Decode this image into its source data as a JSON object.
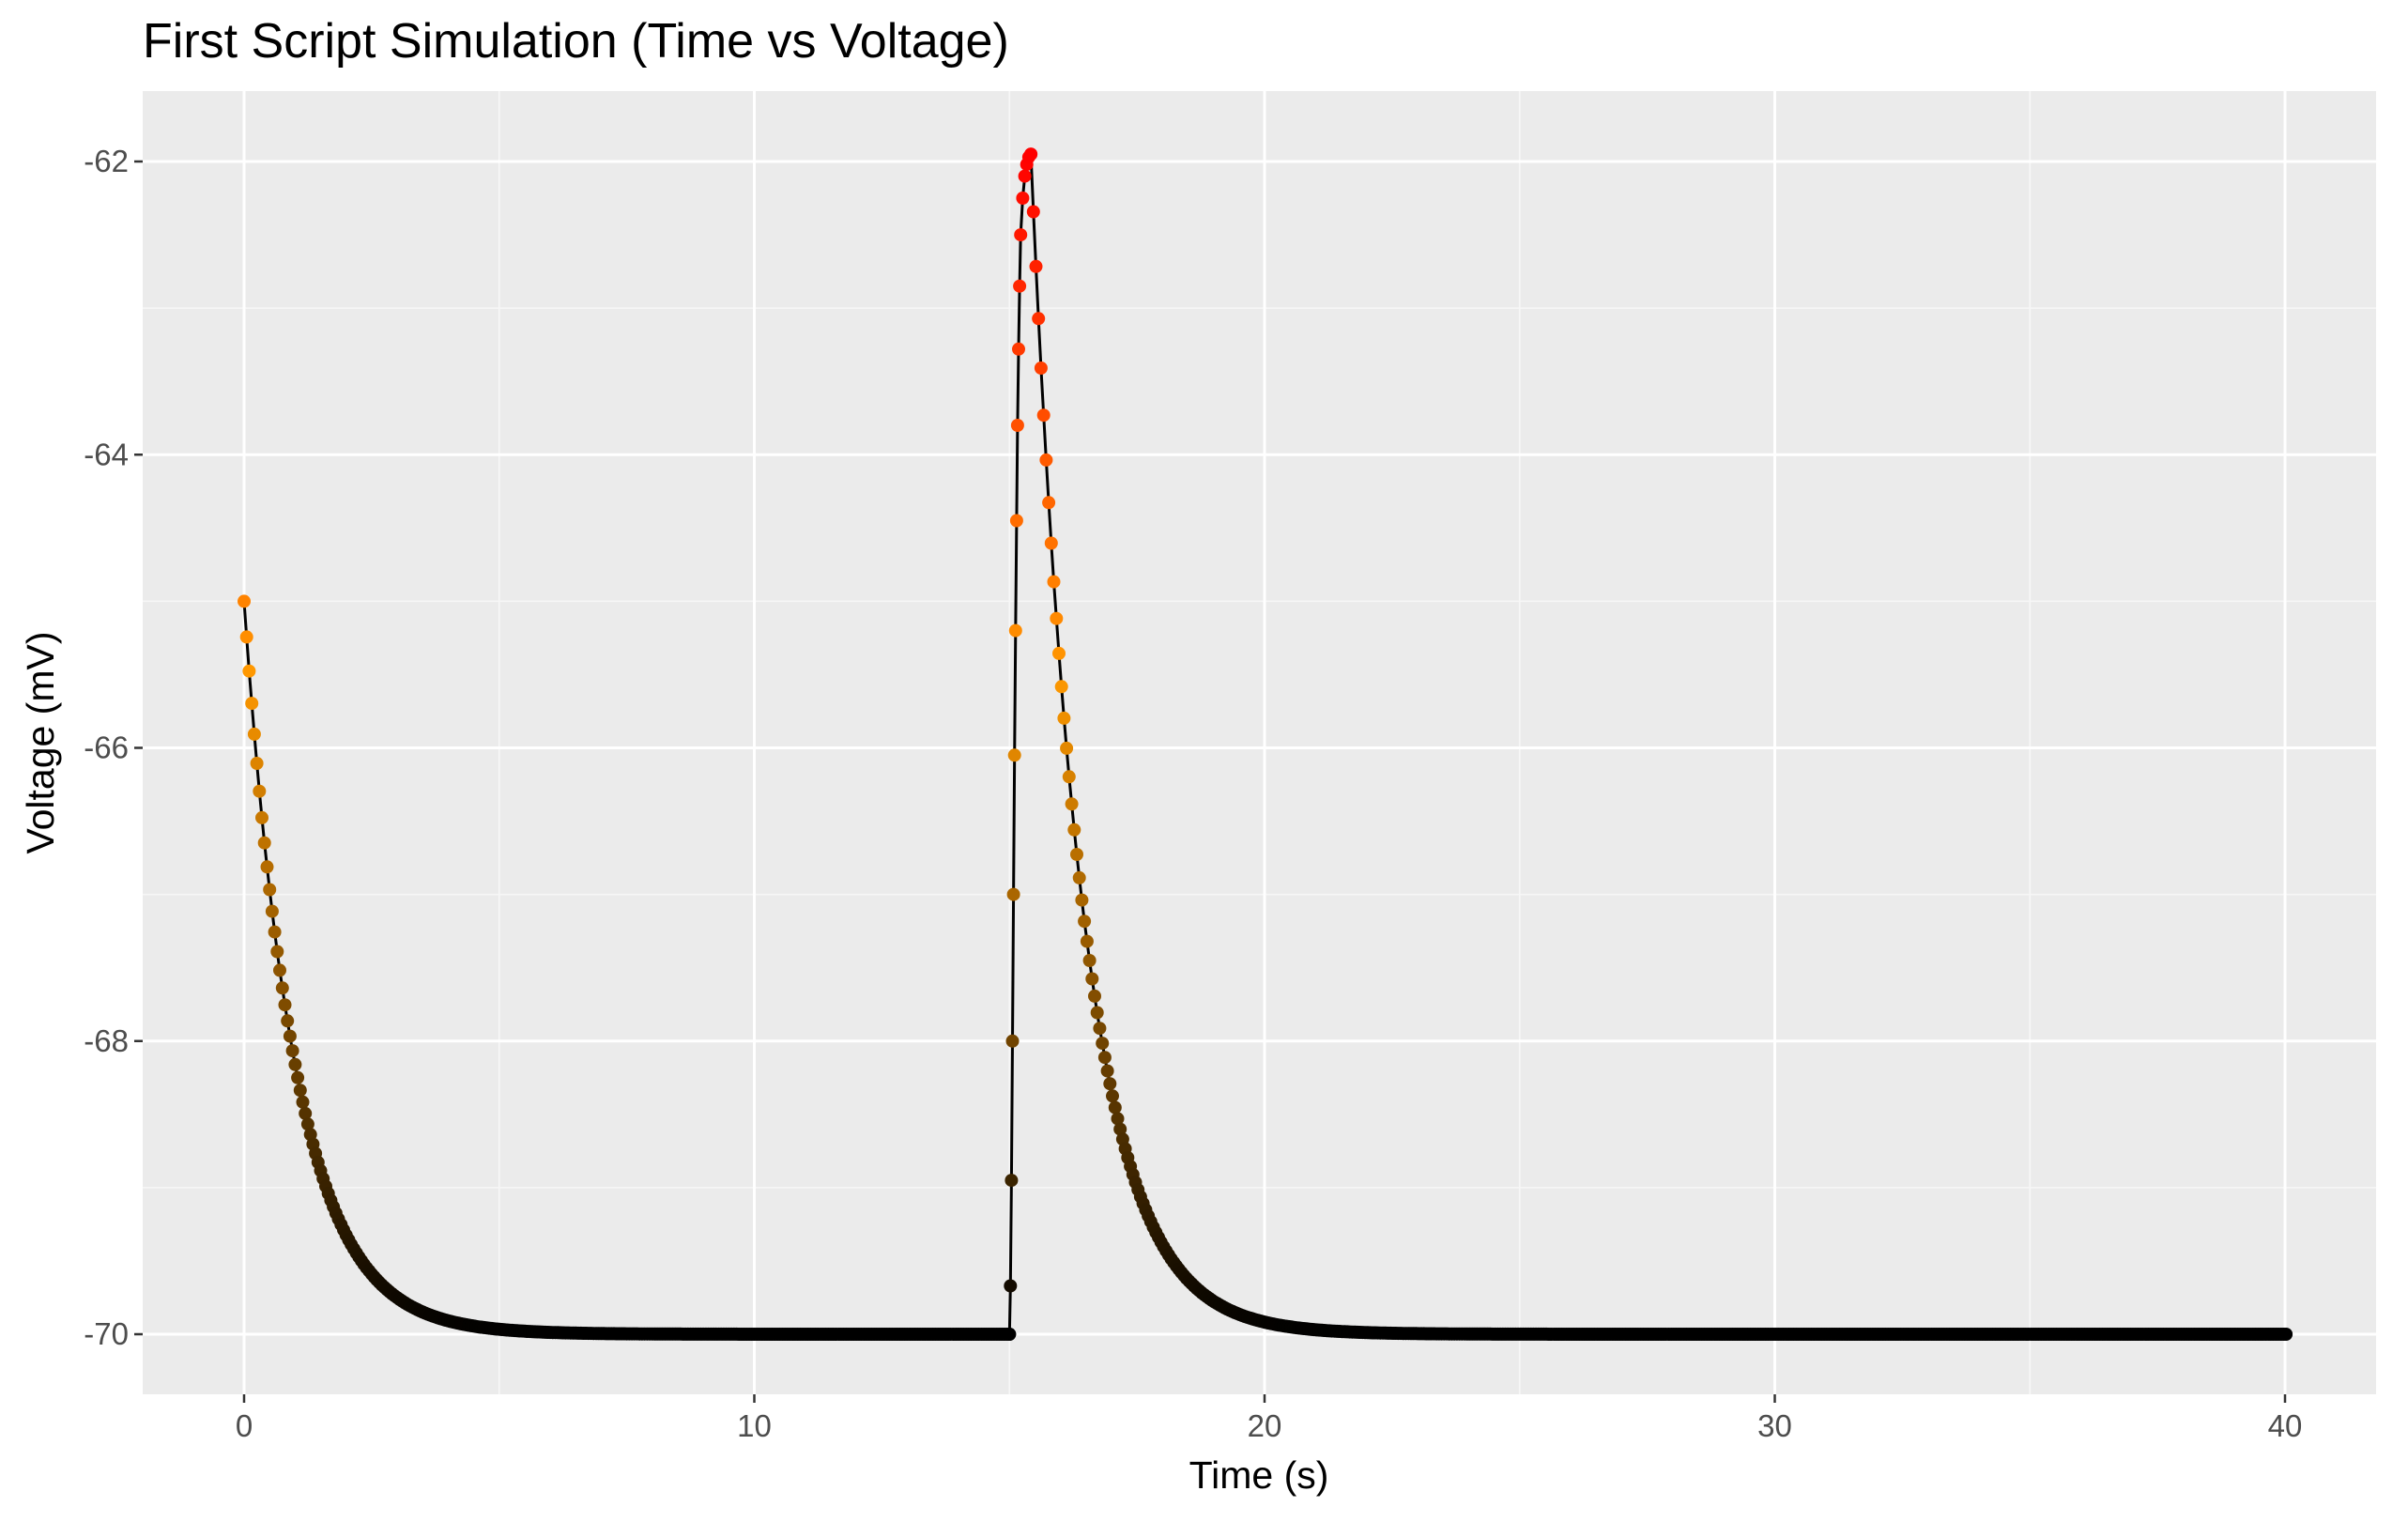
{
  "chart_data": {
    "type": "scatter",
    "title": "First Script Simulation (Time vs Voltage)",
    "xlabel": "Time (s)",
    "ylabel": "Voltage (mV)",
    "xlim": [
      -2,
      41.5
    ],
    "ylim": [
      -70.4,
      -61.5
    ],
    "xticks": [
      0,
      10,
      20,
      30,
      40
    ],
    "xtick_labels": [
      "0",
      "10",
      "20",
      "30",
      "40"
    ],
    "yticks": [
      -70,
      -68,
      -66,
      -64,
      -62
    ],
    "ytick_labels": [
      "-70",
      "-68",
      "-66",
      "-64",
      "-62"
    ],
    "grid": true,
    "legend": "none",
    "line_color": "#000000",
    "color_scale": {
      "low": "#000000",
      "mid": "#ff9900",
      "high": "#ff0000"
    },
    "series": [
      {
        "segments": [
          {
            "model": "exp_decay",
            "t_start": 0,
            "t_end": 15,
            "v_start": -65,
            "v_rest": -70,
            "tau": 1.0,
            "step": 0.05
          },
          {
            "model": "ramp_points",
            "points": [
              [
                15,
                -70
              ],
              [
                15.02,
                -69.67
              ],
              [
                15.04,
                -68.95
              ],
              [
                15.06,
                -68.0
              ],
              [
                15.08,
                -67.0
              ],
              [
                15.1,
                -66.05
              ],
              [
                15.12,
                -65.2
              ],
              [
                15.14,
                -64.45
              ],
              [
                15.16,
                -63.8
              ],
              [
                15.18,
                -63.28
              ],
              [
                15.2,
                -62.85
              ],
              [
                15.22,
                -62.5
              ],
              [
                15.26,
                -62.25
              ],
              [
                15.3,
                -62.1
              ],
              [
                15.34,
                -62.02
              ],
              [
                15.38,
                -61.97
              ],
              [
                15.42,
                -61.95
              ]
            ]
          },
          {
            "model": "exp_decay",
            "t_start": 15.42,
            "t_end": 40,
            "v_start": -61.95,
            "v_rest": -70,
            "tau": 1.0,
            "step": 0.05
          }
        ]
      }
    ]
  }
}
